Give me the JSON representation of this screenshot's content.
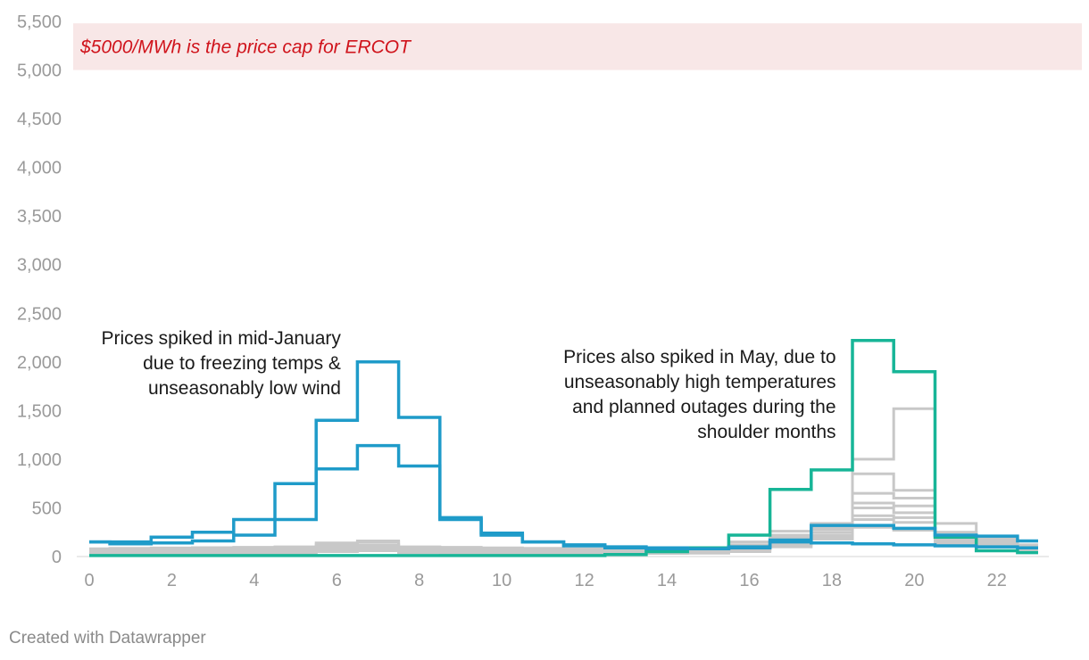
{
  "chart_data": {
    "type": "line",
    "step": true,
    "title": "",
    "xlabel": "",
    "ylabel": "",
    "ylim": [
      0,
      5500
    ],
    "xlim": [
      0,
      23
    ],
    "y_ticks": [
      "0",
      "500",
      "1,000",
      "1,500",
      "2,000",
      "2,500",
      "3,000",
      "3,500",
      "4,000",
      "4,500",
      "5,000",
      "5,500"
    ],
    "y_tick_values": [
      0,
      500,
      1000,
      1500,
      2000,
      2500,
      3000,
      3500,
      4000,
      4500,
      5000,
      5500
    ],
    "x_ticks": [
      "0",
      "2",
      "4",
      "6",
      "8",
      "10",
      "12",
      "14",
      "16",
      "18",
      "20",
      "22"
    ],
    "x_tick_values": [
      0,
      2,
      4,
      6,
      8,
      10,
      12,
      14,
      16,
      18,
      20,
      22
    ],
    "x": [
      0,
      1,
      2,
      3,
      4,
      5,
      6,
      7,
      8,
      9,
      10,
      11,
      12,
      13,
      14,
      15,
      16,
      17,
      18,
      19,
      20,
      21,
      22,
      23
    ],
    "band": {
      "y0": 5000,
      "y1": 5480,
      "label": "$5000/MWh is the price cap for ERCOT",
      "color": "#f8e7e7"
    },
    "colors": {
      "blue": "#1f9bc9",
      "teal": "#17b597",
      "gray": "#c8c8c8"
    },
    "series": [
      {
        "color": "#c8c8c8",
        "values": [
          80,
          85,
          88,
          92,
          95,
          100,
          110,
          120,
          100,
          95,
          90,
          85,
          80,
          80,
          85,
          90,
          150,
          260,
          330,
          300,
          270,
          220,
          150,
          120
        ]
      },
      {
        "color": "#c8c8c8",
        "values": [
          60,
          65,
          70,
          75,
          80,
          85,
          140,
          160,
          90,
          85,
          80,
          75,
          70,
          70,
          75,
          80,
          120,
          220,
          340,
          850,
          680,
          340,
          190,
          110
        ]
      },
      {
        "color": "#c8c8c8",
        "values": [
          50,
          55,
          58,
          60,
          65,
          75,
          120,
          150,
          80,
          75,
          70,
          65,
          60,
          60,
          65,
          70,
          100,
          200,
          300,
          1000,
          1520,
          250,
          170,
          100
        ]
      },
      {
        "color": "#c8c8c8",
        "values": [
          40,
          45,
          48,
          50,
          55,
          60,
          100,
          110,
          70,
          65,
          60,
          55,
          50,
          50,
          55,
          60,
          90,
          180,
          280,
          650,
          600,
          200,
          150,
          90
        ]
      },
      {
        "color": "#c8c8c8",
        "values": [
          30,
          35,
          38,
          40,
          45,
          50,
          80,
          90,
          60,
          55,
          50,
          45,
          40,
          40,
          45,
          50,
          80,
          160,
          250,
          550,
          520,
          180,
          130,
          80
        ]
      },
      {
        "color": "#c8c8c8",
        "values": [
          30,
          32,
          35,
          38,
          40,
          45,
          70,
          80,
          50,
          48,
          45,
          40,
          38,
          38,
          40,
          45,
          70,
          140,
          220,
          500,
          450,
          160,
          120,
          70
        ]
      },
      {
        "color": "#c8c8c8",
        "values": [
          25,
          28,
          30,
          32,
          35,
          40,
          60,
          70,
          45,
          42,
          40,
          38,
          35,
          35,
          38,
          40,
          60,
          120,
          200,
          420,
          400,
          150,
          110,
          65
        ]
      },
      {
        "color": "#c8c8c8",
        "values": [
          20,
          22,
          25,
          28,
          30,
          35,
          50,
          60,
          40,
          38,
          35,
          32,
          30,
          30,
          32,
          35,
          50,
          100,
          180,
          380,
          350,
          130,
          100,
          60
        ]
      },
      {
        "color": "#17b597",
        "values": [
          10,
          10,
          10,
          10,
          10,
          10,
          10,
          10,
          10,
          10,
          10,
          10,
          10,
          20,
          50,
          90,
          220,
          690,
          890,
          2220,
          1900,
          200,
          60,
          40
        ]
      },
      {
        "color": "#1f9bc9",
        "values": [
          150,
          150,
          200,
          250,
          380,
          750,
          1400,
          2000,
          1430,
          400,
          240,
          150,
          120,
          100,
          90,
          80,
          90,
          150,
          140,
          130,
          120,
          110,
          100,
          90
        ]
      },
      {
        "color": "#1f9bc9",
        "values": [
          150,
          130,
          140,
          160,
          220,
          380,
          900,
          1140,
          930,
          380,
          220,
          150,
          110,
          90,
          80,
          80,
          100,
          170,
          320,
          320,
          290,
          220,
          210,
          160
        ]
      }
    ],
    "annotations": [
      {
        "lines": [
          "Prices spiked in mid-January",
          "due to freezing temps &",
          "unseasonably low wind"
        ],
        "anchor_x": 6.1,
        "anchor_y": 2180
      },
      {
        "lines": [
          "Prices also spiked in May, due to",
          "unseasonably high temperatures",
          "and planned outages during the",
          "shoulder months"
        ],
        "anchor_x": 18.1,
        "anchor_y": 1990
      }
    ]
  },
  "footer": {
    "credit": "Created with Datawrapper"
  }
}
